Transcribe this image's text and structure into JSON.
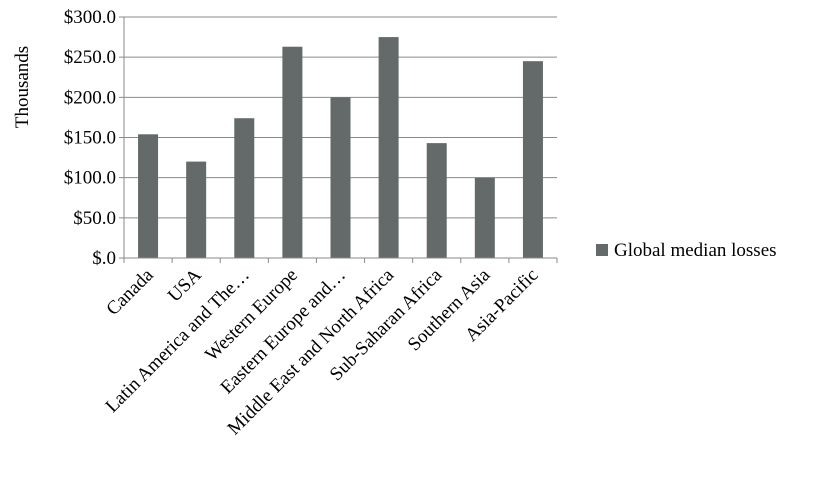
{
  "chart_data": {
    "type": "bar",
    "title": "",
    "xlabel": "",
    "ylabel": "Thousands",
    "ylim": [
      0,
      300
    ],
    "ytick_values": [
      0,
      50,
      100,
      150,
      200,
      250,
      300
    ],
    "ytick_labels": [
      "$.0",
      "$50.0",
      "$100.0",
      "$150.0",
      "$200.0",
      "$250.0",
      "$300.0"
    ],
    "grid": true,
    "legend_position": "right",
    "categories": [
      "Canada",
      "USA",
      "Latin America and The…",
      "Western Europe",
      "Eastern Europe and…",
      "Middle East and North Africa",
      "Sub-Saharan Africa",
      "Southern Asia",
      "Asia-Pacific"
    ],
    "series": [
      {
        "name": "Global median losses",
        "color": "#646969",
        "values": [
          154,
          120,
          174,
          263,
          200,
          275,
          143,
          100,
          245
        ]
      }
    ]
  }
}
